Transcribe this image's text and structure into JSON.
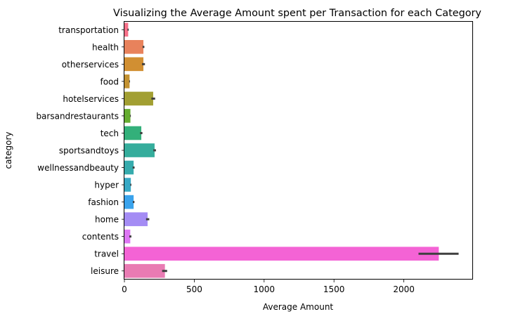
{
  "chart_data": {
    "type": "bar",
    "orientation": "horizontal",
    "title": "Visualizing the Average Amount spent per Transaction for each Category",
    "xlabel": "Average Amount",
    "ylabel": "category",
    "xlim": [
      0,
      2490
    ],
    "xticks": [
      0,
      500,
      1000,
      1500,
      2000
    ],
    "xtick_labels": [
      "0",
      "500",
      "1000",
      "1500",
      "2000"
    ],
    "grid": false,
    "legend": "none",
    "error_bars": true,
    "categories": [
      "transportation",
      "health",
      "otherservices",
      "food",
      "hotelservices",
      "barsandrestaurants",
      "tech",
      "sportsandtoys",
      "wellnessandbeauty",
      "hyper",
      "fashion",
      "home",
      "contents",
      "travel",
      "leisure"
    ],
    "values": [
      27,
      136,
      136,
      37,
      206,
      43,
      121,
      216,
      66,
      46,
      66,
      166,
      42,
      2250,
      290
    ],
    "errors": [
      [
        22,
        31
      ],
      [
        130,
        143
      ],
      [
        126,
        147
      ],
      [
        34,
        40
      ],
      [
        193,
        220
      ],
      [
        40,
        46
      ],
      [
        112,
        129
      ],
      [
        207,
        226
      ],
      [
        59,
        73
      ],
      [
        42,
        50
      ],
      [
        60,
        72
      ],
      [
        155,
        178
      ],
      [
        35,
        50
      ],
      [
        2105,
        2392
      ],
      [
        270,
        306
      ]
    ],
    "colors": [
      "#f77189",
      "#e8825c",
      "#d18f32",
      "#c39232",
      "#a29f32",
      "#66ad31",
      "#33b07a",
      "#35ad9c",
      "#36abad",
      "#38a9c5",
      "#3aa3ec",
      "#a48cf4",
      "#dd77f4",
      "#f463d5",
      "#e97bb3"
    ]
  }
}
